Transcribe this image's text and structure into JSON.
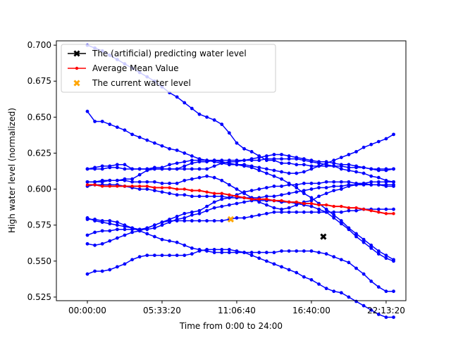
{
  "chart_data": {
    "type": "line",
    "xlabel": "Time from 0:00 to 24:00",
    "ylabel": "High water level (normalized)",
    "x_ticks": [
      "00:00:00",
      "05:33:20",
      "11:06:40",
      "16:40:00",
      "22:13:20"
    ],
    "x_tick_seconds": [
      0,
      20000,
      40000,
      60000,
      80000
    ],
    "xlim": [
      -8300,
      85300
    ],
    "ylim": [
      0.5225,
      0.703
    ],
    "y_ticks": [
      0.525,
      0.55,
      0.575,
      0.6,
      0.625,
      0.65,
      0.675,
      0.7
    ],
    "y_tick_labels": [
      "0.525",
      "0.550",
      "0.575",
      "0.600",
      "0.625",
      "0.650",
      "0.675",
      "0.700"
    ],
    "legend": {
      "position": "upper-left",
      "entries": [
        "The (artificial) predicting water level",
        "Average Mean Value",
        "The current water level"
      ]
    },
    "colors": {
      "samples": "#0000ff",
      "mean": "#ff0000",
      "current": "#ffa500",
      "prediction": "#000000"
    },
    "sample_series_x_seconds": [
      0,
      2000,
      4000,
      6000,
      8000,
      10000,
      12000,
      14000,
      16000,
      18000,
      20000,
      22000,
      24000,
      26000,
      28000,
      30000,
      32000,
      34000,
      36000,
      38000,
      40000,
      42000,
      44000,
      46000,
      48000,
      50000,
      52000,
      54000,
      56000,
      58000,
      60000,
      62000,
      64000,
      66000,
      68000,
      70000,
      72000,
      74000,
      76000,
      78000,
      80000,
      82000
    ],
    "sample_series": [
      {
        "values": [
          0.654,
          0.647,
          0.647,
          0.645,
          0.643,
          0.641,
          0.638,
          0.636,
          0.634,
          0.632,
          0.63,
          0.628,
          0.627,
          0.625,
          0.623,
          0.621,
          0.62,
          0.619,
          0.618,
          0.617,
          0.617,
          0.616,
          0.615,
          0.613,
          0.611,
          0.609,
          0.607,
          0.604,
          0.601,
          0.597,
          0.594,
          0.59,
          0.586,
          0.582,
          0.578,
          0.573,
          0.569,
          0.565,
          0.561,
          0.557,
          0.554,
          0.551
        ]
      },
      {
        "values": [
          0.614,
          0.614,
          0.614,
          0.615,
          0.615,
          0.614,
          0.614,
          0.614,
          0.614,
          0.615,
          0.615,
          0.617,
          0.618,
          0.619,
          0.62,
          0.62,
          0.62,
          0.62,
          0.619,
          0.618,
          0.617,
          0.617,
          0.616,
          0.615,
          0.614,
          0.613,
          0.612,
          0.611,
          0.611,
          0.612,
          0.614,
          0.616,
          0.618,
          0.62,
          0.622,
          0.624,
          0.626,
          0.629,
          0.631,
          0.633,
          0.635,
          0.638
        ]
      },
      {
        "values": [
          0.614,
          0.615,
          0.616,
          0.616,
          0.617,
          0.617,
          0.614,
          0.614,
          0.614,
          0.614,
          0.614,
          0.614,
          0.614,
          0.614,
          0.614,
          0.614,
          0.614,
          0.616,
          0.618,
          0.619,
          0.619,
          0.62,
          0.621,
          0.622,
          0.623,
          0.624,
          0.624,
          0.623,
          0.622,
          0.621,
          0.62,
          0.619,
          0.619,
          0.618,
          0.617,
          0.617,
          0.616,
          0.615,
          0.614,
          0.613,
          0.613,
          0.614
        ]
      },
      {
        "values": [
          0.605,
          0.605,
          0.605,
          0.606,
          0.606,
          0.607,
          0.607,
          0.61,
          0.613,
          0.614,
          0.614,
          0.614,
          0.614,
          0.616,
          0.618,
          0.619,
          0.619,
          0.62,
          0.62,
          0.62,
          0.62,
          0.62,
          0.62,
          0.62,
          0.621,
          0.621,
          0.621,
          0.621,
          0.621,
          0.62,
          0.619,
          0.618,
          0.617,
          0.616,
          0.614,
          0.613,
          0.612,
          0.611,
          0.609,
          0.608,
          0.606,
          0.605
        ]
      },
      {
        "values": [
          0.605,
          0.605,
          0.606,
          0.606,
          0.606,
          0.606,
          0.605,
          0.605,
          0.605,
          0.605,
          0.604,
          0.604,
          0.604,
          0.606,
          0.607,
          0.608,
          0.609,
          0.608,
          0.606,
          0.603,
          0.6,
          0.597,
          0.594,
          0.591,
          0.589,
          0.587,
          0.586,
          0.587,
          0.589,
          0.591,
          0.592,
          0.595,
          0.597,
          0.599,
          0.6,
          0.602,
          0.603,
          0.604,
          0.605,
          0.605,
          0.605,
          0.605
        ]
      },
      {
        "values": [
          0.602,
          0.603,
          0.603,
          0.603,
          0.603,
          0.602,
          0.601,
          0.6,
          0.6,
          0.599,
          0.598,
          0.597,
          0.596,
          0.596,
          0.595,
          0.595,
          0.595,
          0.595,
          0.595,
          0.594,
          0.594,
          0.594,
          0.594,
          0.594,
          0.595,
          0.595,
          0.596,
          0.597,
          0.598,
          0.599,
          0.6,
          0.601,
          0.601,
          0.602,
          0.602,
          0.603,
          0.603,
          0.603,
          0.603,
          0.603,
          0.603,
          0.603
        ]
      },
      {
        "values": [
          0.58,
          0.578,
          0.577,
          0.576,
          0.575,
          0.574,
          0.573,
          0.572,
          0.573,
          0.575,
          0.577,
          0.579,
          0.581,
          0.583,
          0.584,
          0.585,
          0.588,
          0.591,
          0.593,
          0.594,
          0.596,
          0.598,
          0.599,
          0.6,
          0.601,
          0.602,
          0.602,
          0.603,
          0.603,
          0.604,
          0.604,
          0.604,
          0.605,
          0.605,
          0.605,
          0.605,
          0.604,
          0.604,
          0.603,
          0.603,
          0.602,
          0.602
        ]
      },
      {
        "values": [
          0.568,
          0.57,
          0.571,
          0.571,
          0.572,
          0.572,
          0.572,
          0.572,
          0.572,
          0.573,
          0.575,
          0.577,
          0.579,
          0.58,
          0.582,
          0.583,
          0.585,
          0.587,
          0.588,
          0.589,
          0.59,
          0.591,
          0.592,
          0.592,
          0.592,
          0.592,
          0.591,
          0.591,
          0.59,
          0.589,
          0.588,
          0.586,
          0.584,
          0.58,
          0.576,
          0.572,
          0.567,
          0.563,
          0.559,
          0.555,
          0.552,
          0.55
        ]
      },
      {
        "values": [
          0.562,
          0.561,
          0.562,
          0.564,
          0.566,
          0.568,
          0.57,
          0.571,
          0.573,
          0.575,
          0.577,
          0.578,
          0.578,
          0.578,
          0.578,
          0.578,
          0.578,
          0.578,
          0.578,
          0.579,
          0.58,
          0.58,
          0.581,
          0.582,
          0.583,
          0.584,
          0.584,
          0.584,
          0.584,
          0.584,
          0.584,
          0.584,
          0.584,
          0.584,
          0.584,
          0.585,
          0.585,
          0.586,
          0.586,
          0.586,
          0.586,
          0.586
        ]
      },
      {
        "values": [
          0.579,
          0.579,
          0.578,
          0.578,
          0.577,
          0.575,
          0.573,
          0.571,
          0.569,
          0.567,
          0.565,
          0.564,
          0.563,
          0.561,
          0.559,
          0.558,
          0.557,
          0.556,
          0.556,
          0.556,
          0.556,
          0.556,
          0.556,
          0.556,
          0.556,
          0.556,
          0.557,
          0.557,
          0.557,
          0.557,
          0.557,
          0.556,
          0.555,
          0.553,
          0.551,
          0.549,
          0.545,
          0.541,
          0.536,
          0.532,
          0.529,
          0.529
        ]
      },
      {
        "values": [
          0.541,
          0.543,
          0.543,
          0.544,
          0.546,
          0.548,
          0.551,
          0.553,
          0.554,
          0.554,
          0.554,
          0.554,
          0.554,
          0.554,
          0.555,
          0.557,
          0.558,
          0.558,
          0.558,
          0.558,
          0.557,
          0.556,
          0.554,
          0.552,
          0.55,
          0.548,
          0.546,
          0.544,
          0.542,
          0.539,
          0.537,
          0.534,
          0.531,
          0.529,
          0.528,
          0.525,
          0.522,
          0.519,
          0.516,
          0.513,
          0.511,
          0.511
        ]
      },
      {
        "values": [
          0.7,
          0.698,
          0.696,
          0.693,
          0.69,
          0.687,
          0.684,
          0.681,
          0.678,
          0.675,
          0.671,
          0.667,
          0.664,
          0.66,
          0.656,
          0.652,
          0.65,
          0.648,
          0.645,
          0.639,
          0.632,
          0.628,
          0.626,
          0.623,
          0.62,
          0.62,
          0.618,
          0.618,
          0.617,
          0.617,
          0.616,
          0.616,
          0.616,
          0.616,
          0.616,
          0.615,
          0.615,
          0.615,
          0.614,
          0.614,
          0.614,
          0.614
        ]
      }
    ],
    "mean_series": {
      "name": "Average Mean Value",
      "x_seconds": [
        0,
        2000,
        4000,
        6000,
        8000,
        10000,
        12000,
        14000,
        16000,
        18000,
        20000,
        22000,
        24000,
        26000,
        28000,
        30000,
        32000,
        34000,
        36000,
        38000,
        40000,
        42000,
        44000,
        46000,
        48000,
        50000,
        52000,
        54000,
        56000,
        58000,
        60000,
        62000,
        64000,
        66000,
        68000,
        70000,
        72000,
        74000,
        76000,
        78000,
        80000,
        82000
      ],
      "values": [
        0.603,
        0.603,
        0.602,
        0.602,
        0.602,
        0.602,
        0.602,
        0.602,
        0.602,
        0.601,
        0.601,
        0.601,
        0.6,
        0.6,
        0.599,
        0.599,
        0.598,
        0.597,
        0.597,
        0.596,
        0.595,
        0.594,
        0.593,
        0.593,
        0.593,
        0.592,
        0.592,
        0.591,
        0.591,
        0.59,
        0.59,
        0.589,
        0.589,
        0.588,
        0.588,
        0.587,
        0.587,
        0.586,
        0.585,
        0.584,
        0.583,
        0.583
      ]
    },
    "current_point": {
      "name": "The current water level",
      "x_seconds": 38400,
      "value": 0.579
    },
    "prediction_point": {
      "name": "The (artificial) predicting water level",
      "x_seconds": 63200,
      "value": 0.567
    }
  }
}
